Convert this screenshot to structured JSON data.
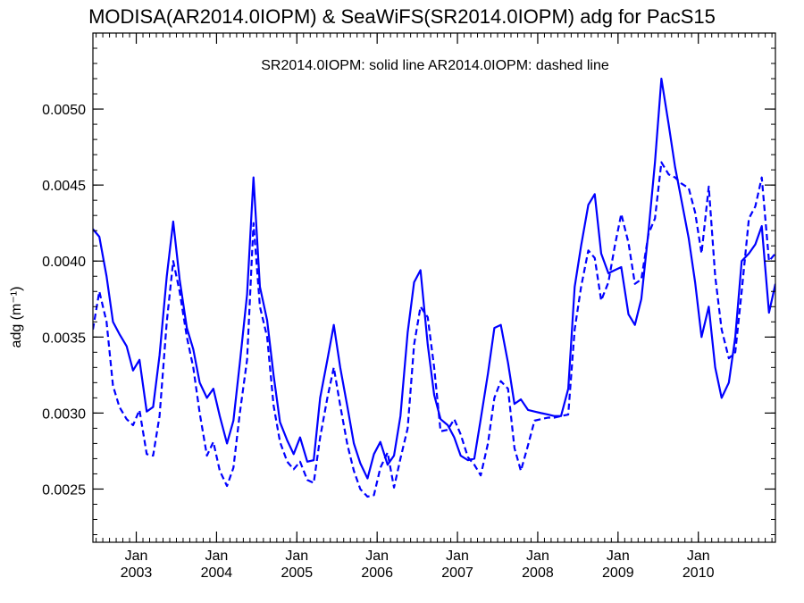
{
  "chart_data": {
    "type": "line",
    "title": "MODISA(AR2014.0IOPM) & SeaWiFS(SR2014.0IOPM)  adg for PacS15",
    "annotation": "SR2014.0IOPM: solid line   AR2014.0IOPM: dashed line",
    "ylabel": "adg (m⁻¹)",
    "xlabel": "",
    "xlim": [
      2002.46,
      2010.96
    ],
    "ylim": [
      0.00215,
      0.0055
    ],
    "yticks": [
      {
        "value": 0.0025,
        "label": "0.0025"
      },
      {
        "value": 0.003,
        "label": "0.0030"
      },
      {
        "value": 0.0035,
        "label": "0.0035"
      },
      {
        "value": 0.004,
        "label": "0.0040"
      },
      {
        "value": 0.0045,
        "label": "0.0045"
      },
      {
        "value": 0.005,
        "label": "0.0050"
      }
    ],
    "xticks": [
      {
        "value": 2003.0,
        "month": "Jan",
        "year": "2003"
      },
      {
        "value": 2004.0,
        "month": "Jan",
        "year": "2004"
      },
      {
        "value": 2005.0,
        "month": "Jan",
        "year": "2005"
      },
      {
        "value": 2006.0,
        "month": "Jan",
        "year": "2006"
      },
      {
        "value": 2007.0,
        "month": "Jan",
        "year": "2007"
      },
      {
        "value": 2008.0,
        "month": "Jan",
        "year": "2008"
      },
      {
        "value": 2009.0,
        "month": "Jan",
        "year": "2009"
      },
      {
        "value": 2010.0,
        "month": "Jan",
        "year": "2010"
      }
    ],
    "series": [
      {
        "style": "solid",
        "color": "#0000ff",
        "x": [
          2002.46,
          2002.54,
          2002.63,
          2002.71,
          2002.79,
          2002.88,
          2002.96,
          2003.04,
          2003.13,
          2003.21,
          2003.29,
          2003.38,
          2003.46,
          2003.54,
          2003.63,
          2003.71,
          2003.79,
          2003.88,
          2003.96,
          2004.04,
          2004.13,
          2004.21,
          2004.29,
          2004.38,
          2004.46,
          2004.54,
          2004.63,
          2004.71,
          2004.79,
          2004.88,
          2004.96,
          2005.04,
          2005.13,
          2005.21,
          2005.29,
          2005.38,
          2005.46,
          2005.54,
          2005.63,
          2005.71,
          2005.79,
          2005.88,
          2005.96,
          2006.04,
          2006.13,
          2006.21,
          2006.29,
          2006.38,
          2006.46,
          2006.54,
          2006.63,
          2006.71,
          2006.79,
          2006.88,
          2006.96,
          2007.04,
          2007.13,
          2007.21,
          2007.29,
          2007.38,
          2007.46,
          2007.54,
          2007.63,
          2007.71,
          2007.79,
          2007.88,
          2007.96,
          2008.04,
          2008.13,
          2008.21,
          2008.29,
          2008.38,
          2008.46,
          2008.54,
          2008.63,
          2008.71,
          2008.79,
          2008.88,
          2008.96,
          2009.04,
          2009.13,
          2009.21,
          2009.29,
          2009.38,
          2009.46,
          2009.54,
          2009.63,
          2009.71,
          2009.79,
          2009.88,
          2009.96,
          2010.04,
          2010.13,
          2010.21,
          2010.29,
          2010.38,
          2010.46,
          2010.54,
          2010.63,
          2010.71,
          2010.79,
          2010.88,
          2010.96
        ],
        "y": [
          0.00421,
          0.00416,
          0.0039,
          0.0036,
          0.00352,
          0.00344,
          0.00328,
          0.00335,
          0.00301,
          0.00304,
          0.00338,
          0.0039,
          0.00426,
          0.00388,
          0.00356,
          0.00342,
          0.0032,
          0.0031,
          0.00316,
          0.00298,
          0.0028,
          0.00295,
          0.00333,
          0.00378,
          0.00455,
          0.00383,
          0.00361,
          0.00325,
          0.00294,
          0.00282,
          0.00273,
          0.00284,
          0.00268,
          0.00269,
          0.0031,
          0.00335,
          0.00358,
          0.0033,
          0.00304,
          0.0028,
          0.00267,
          0.00257,
          0.00273,
          0.00281,
          0.00266,
          0.00272,
          0.00298,
          0.00353,
          0.00386,
          0.00394,
          0.00345,
          0.00312,
          0.00296,
          0.00292,
          0.00284,
          0.00272,
          0.00269,
          0.0027,
          0.00296,
          0.00326,
          0.00356,
          0.00358,
          0.00333,
          0.00306,
          0.00309,
          0.00302,
          0.00301,
          0.003,
          0.00299,
          0.00298,
          0.00298,
          0.00316,
          0.00383,
          0.0041,
          0.00437,
          0.00444,
          0.00405,
          0.00392,
          0.00394,
          0.00396,
          0.00365,
          0.00358,
          0.00375,
          0.0042,
          0.00465,
          0.0052,
          0.0049,
          0.00462,
          0.0044,
          0.00415,
          0.00386,
          0.0035,
          0.0037,
          0.0033,
          0.0031,
          0.0032,
          0.0035,
          0.004,
          0.00405,
          0.00411,
          0.00423,
          0.00366,
          0.00385
        ]
      },
      {
        "style": "dashed",
        "color": "#0000ff",
        "x": [
          2002.46,
          2002.54,
          2002.63,
          2002.71,
          2002.79,
          2002.88,
          2002.96,
          2003.04,
          2003.13,
          2003.21,
          2003.29,
          2003.38,
          2003.46,
          2003.54,
          2003.63,
          2003.71,
          2003.79,
          2003.88,
          2003.96,
          2004.04,
          2004.13,
          2004.21,
          2004.29,
          2004.38,
          2004.46,
          2004.54,
          2004.63,
          2004.71,
          2004.79,
          2004.88,
          2004.96,
          2005.04,
          2005.13,
          2005.21,
          2005.29,
          2005.38,
          2005.46,
          2005.54,
          2005.63,
          2005.71,
          2005.79,
          2005.88,
          2005.96,
          2006.04,
          2006.13,
          2006.21,
          2006.29,
          2006.38,
          2006.46,
          2006.54,
          2006.63,
          2006.71,
          2006.79,
          2006.88,
          2006.96,
          2007.04,
          2007.13,
          2007.21,
          2007.29,
          2007.38,
          2007.46,
          2007.54,
          2007.63,
          2007.71,
          2007.79,
          2007.88,
          2007.96,
          2008.04,
          2008.13,
          2008.21,
          2008.29,
          2008.38,
          2008.46,
          2008.54,
          2008.63,
          2008.71,
          2008.79,
          2008.88,
          2008.96,
          2009.04,
          2009.13,
          2009.21,
          2009.29,
          2009.38,
          2009.46,
          2009.54,
          2009.63,
          2009.71,
          2009.79,
          2009.88,
          2009.96,
          2010.04,
          2010.13,
          2010.21,
          2010.29,
          2010.38,
          2010.46,
          2010.54,
          2010.63,
          2010.71,
          2010.79,
          2010.88,
          2010.96
        ],
        "y": [
          0.00355,
          0.0038,
          0.0036,
          0.00318,
          0.00304,
          0.00296,
          0.00292,
          0.00302,
          0.00273,
          0.00272,
          0.00298,
          0.0036,
          0.004,
          0.0038,
          0.0035,
          0.0033,
          0.003,
          0.00272,
          0.00281,
          0.00262,
          0.00252,
          0.00264,
          0.003,
          0.00335,
          0.00425,
          0.0037,
          0.0035,
          0.00305,
          0.00281,
          0.00268,
          0.00263,
          0.00268,
          0.00256,
          0.00254,
          0.00284,
          0.0031,
          0.0033,
          0.00305,
          0.00279,
          0.00262,
          0.0025,
          0.00245,
          0.00246,
          0.00264,
          0.00274,
          0.00251,
          0.0027,
          0.0029,
          0.00345,
          0.0037,
          0.00363,
          0.0033,
          0.00288,
          0.00289,
          0.00296,
          0.00286,
          0.00271,
          0.00266,
          0.00259,
          0.0028,
          0.0031,
          0.00321,
          0.00316,
          0.00277,
          0.00262,
          0.00279,
          0.00295,
          0.00296,
          0.00297,
          0.00297,
          0.00298,
          0.00299,
          0.00355,
          0.00383,
          0.00407,
          0.00402,
          0.00374,
          0.00386,
          0.0041,
          0.00431,
          0.00412,
          0.00385,
          0.00388,
          0.00418,
          0.00428,
          0.00465,
          0.00457,
          0.00455,
          0.00451,
          0.00448,
          0.00432,
          0.00405,
          0.00449,
          0.0039,
          0.00355,
          0.00336,
          0.0034,
          0.0038,
          0.00428,
          0.00436,
          0.00455,
          0.004,
          0.00405
        ]
      }
    ]
  }
}
